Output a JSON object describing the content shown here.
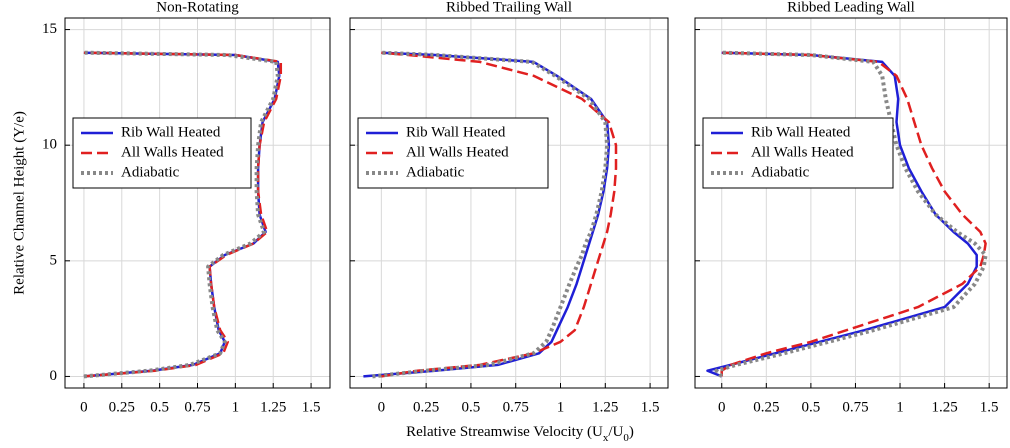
{
  "figure": {
    "xlabel_parts": [
      "Relative Streamwise Velocity (U",
      "x",
      "/U",
      "0",
      ")"
    ],
    "ylabel": "Relative Channel Height (Y/e)"
  },
  "chart_data": [
    {
      "type": "line",
      "title": "Non-Rotating",
      "grid": true,
      "legend_loc": "center left",
      "xlim": [
        -0.125,
        1.625
      ],
      "ylim": [
        -0.5,
        15.5
      ],
      "xticks": [
        0,
        0.25,
        0.5,
        0.75,
        1,
        1.25,
        1.5
      ],
      "yticks": [
        0,
        5,
        10,
        15
      ],
      "y": [
        0,
        0.25,
        0.5,
        1,
        1.5,
        2,
        3,
        4,
        4.75,
        5.25,
        5.75,
        6.25,
        7,
        8,
        9,
        10,
        11,
        12,
        13,
        13.6,
        13.9,
        14
      ],
      "series": [
        {
          "name": "Rib Wall Heated",
          "color": "#1f1fd6",
          "style": "solid",
          "values": [
            0,
            0.45,
            0.72,
            0.9,
            0.93,
            0.89,
            0.86,
            0.84,
            0.83,
            0.93,
            1.12,
            1.2,
            1.16,
            1.15,
            1.15,
            1.16,
            1.18,
            1.26,
            1.29,
            1.28,
            1.0,
            0
          ]
        },
        {
          "name": "All Walls Heated",
          "color": "#e02020",
          "style": "dashed",
          "values": [
            0,
            0.47,
            0.74,
            0.92,
            0.95,
            0.9,
            0.86,
            0.84,
            0.83,
            0.94,
            1.12,
            1.21,
            1.17,
            1.15,
            1.15,
            1.16,
            1.19,
            1.27,
            1.3,
            1.3,
            1.0,
            0
          ]
        },
        {
          "name": "Adiabatic",
          "color": "#888888",
          "style": "dotted",
          "values": [
            0,
            0.43,
            0.7,
            0.9,
            0.93,
            0.88,
            0.85,
            0.83,
            0.82,
            0.92,
            1.1,
            1.19,
            1.15,
            1.14,
            1.14,
            1.15,
            1.17,
            1.25,
            1.28,
            1.27,
            0.95,
            0
          ]
        }
      ]
    },
    {
      "type": "line",
      "title": "Ribbed Trailing Wall",
      "grid": true,
      "legend_loc": "center left",
      "xlim": [
        -0.175,
        1.6
      ],
      "ylim": [
        -0.5,
        15.5
      ],
      "xticks": [
        0,
        0.25,
        0.5,
        0.75,
        1,
        1.25,
        1.5
      ],
      "yticks": [
        0,
        5,
        10,
        15
      ],
      "y": [
        0,
        0.25,
        0.5,
        1,
        1.5,
        2,
        3,
        4,
        4.75,
        5.25,
        5.75,
        6.25,
        7,
        8,
        9,
        10,
        11,
        12,
        13,
        13.6,
        13.9,
        14
      ],
      "series": [
        {
          "name": "Rib Wall Heated",
          "color": "#1f1fd6",
          "style": "solid",
          "values": [
            -0.1,
            0.3,
            0.65,
            0.88,
            0.95,
            0.98,
            1.04,
            1.09,
            1.12,
            1.14,
            1.16,
            1.18,
            1.21,
            1.24,
            1.26,
            1.27,
            1.26,
            1.17,
            0.98,
            0.85,
            0.3,
            0
          ]
        },
        {
          "name": "All Walls Heated",
          "color": "#e02020",
          "style": "dashed",
          "values": [
            0,
            0.2,
            0.55,
            0.85,
            1.0,
            1.08,
            1.13,
            1.17,
            1.2,
            1.22,
            1.24,
            1.26,
            1.28,
            1.3,
            1.31,
            1.31,
            1.27,
            1.12,
            0.85,
            0.55,
            0.15,
            0
          ]
        },
        {
          "name": "Adiabatic",
          "color": "#888888",
          "style": "dotted",
          "values": [
            -0.05,
            0.25,
            0.6,
            0.85,
            0.92,
            0.95,
            1.0,
            1.05,
            1.09,
            1.12,
            1.14,
            1.17,
            1.2,
            1.23,
            1.25,
            1.26,
            1.25,
            1.16,
            0.97,
            0.84,
            0.3,
            0
          ]
        }
      ]
    },
    {
      "type": "line",
      "title": "Ribbed Leading Wall",
      "grid": true,
      "legend_loc": "center left",
      "xlim": [
        -0.15,
        1.6
      ],
      "ylim": [
        -0.5,
        15.5
      ],
      "xticks": [
        0,
        0.25,
        0.5,
        0.75,
        1,
        1.25,
        1.5
      ],
      "yticks": [
        0,
        5,
        10,
        15
      ],
      "y": [
        0,
        0.25,
        0.5,
        1,
        1.5,
        2,
        3,
        4,
        4.75,
        5.25,
        5.75,
        6.25,
        7,
        8,
        9,
        10,
        11,
        12,
        13,
        13.6,
        13.9,
        14
      ],
      "series": [
        {
          "name": "Rib Wall Heated",
          "color": "#1f1fd6",
          "style": "solid",
          "values": [
            0,
            -0.08,
            0.05,
            0.3,
            0.55,
            0.8,
            1.25,
            1.38,
            1.43,
            1.43,
            1.38,
            1.3,
            1.2,
            1.12,
            1.05,
            1.0,
            0.98,
            0.99,
            0.97,
            0.9,
            0.5,
            0
          ]
        },
        {
          "name": "All Walls Heated",
          "color": "#e02020",
          "style": "dashed",
          "values": [
            0,
            0.0,
            0.05,
            0.25,
            0.5,
            0.7,
            1.1,
            1.35,
            1.45,
            1.47,
            1.48,
            1.45,
            1.35,
            1.25,
            1.18,
            1.12,
            1.08,
            1.04,
            0.98,
            0.88,
            0.5,
            0
          ]
        },
        {
          "name": "Adiabatic",
          "color": "#888888",
          "style": "dotted",
          "values": [
            0,
            -0.03,
            0.08,
            0.35,
            0.6,
            0.85,
            1.3,
            1.42,
            1.47,
            1.48,
            1.42,
            1.32,
            1.2,
            1.1,
            1.03,
            0.98,
            0.95,
            0.92,
            0.9,
            0.85,
            0.5,
            0
          ]
        }
      ]
    }
  ]
}
